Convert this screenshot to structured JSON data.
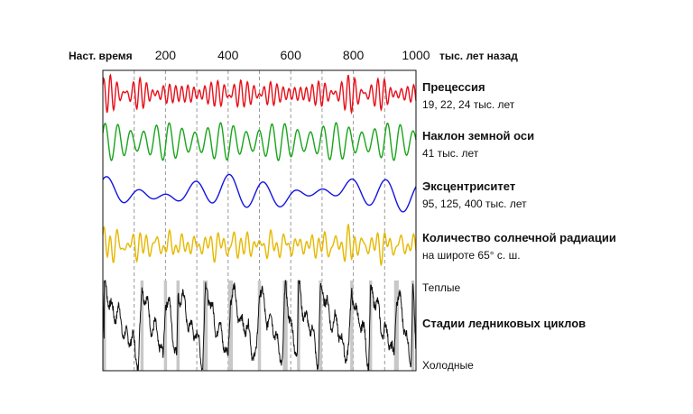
{
  "chart_data": {
    "type": "line",
    "x_axis": {
      "start_label": "Наст. время",
      "ticks": [
        200,
        400,
        600,
        800,
        1000
      ],
      "tick_labels": [
        "200",
        "400",
        "600",
        "800",
        "1000"
      ],
      "unit_label": "тыс. лет назад",
      "range": [
        0,
        1000
      ]
    },
    "series": [
      {
        "key": "precession",
        "title": "Прецессия",
        "subtitle": "19, 22, 24 тыс. лет",
        "color": "#e8101a"
      },
      {
        "key": "obliquity",
        "title": "Наклон земной оси",
        "subtitle": "41 тыс. лет",
        "color": "#19a51b"
      },
      {
        "key": "eccentricity",
        "title": "Эксцентриситет",
        "subtitle": "95, 125, 400 тыс. лет",
        "color": "#1414e0"
      },
      {
        "key": "insolation",
        "title": "Количество солнечной радиации",
        "subtitle": "на широте 65° с. ш.",
        "color": "#e6b800"
      },
      {
        "key": "glacial",
        "title": "Стадии ледниковых циклов",
        "subtitle": "",
        "color": "#111111"
      }
    ],
    "glacial_labels": {
      "warm": "Теплые",
      "cold": "Холодные"
    },
    "grid": true,
    "interglacial_bars_kyr": [
      [
        0,
        10
      ],
      [
        120,
        130
      ],
      [
        195,
        205
      ],
      [
        235,
        245
      ],
      [
        320,
        335
      ],
      [
        400,
        415
      ],
      [
        495,
        505
      ],
      [
        575,
        590
      ],
      [
        620,
        630
      ],
      [
        690,
        700
      ],
      [
        790,
        800
      ],
      [
        850,
        860
      ],
      [
        930,
        945
      ],
      [
        985,
        995
      ]
    ]
  }
}
